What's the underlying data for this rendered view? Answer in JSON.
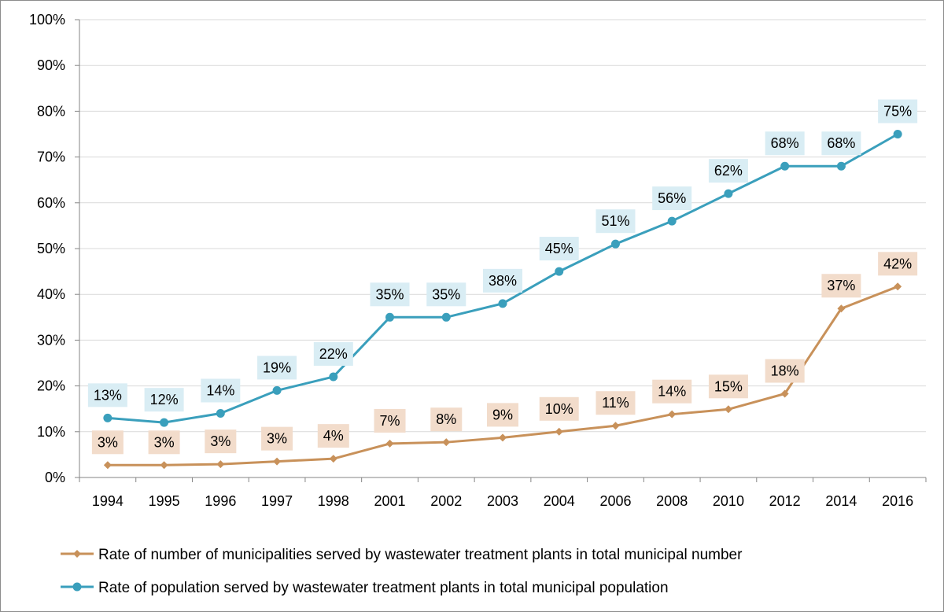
{
  "chart_data": {
    "type": "line",
    "categories": [
      "1994",
      "1995",
      "1996",
      "1997",
      "1998",
      "2001",
      "2002",
      "2003",
      "2004",
      "2006",
      "2008",
      "2010",
      "2012",
      "2014",
      "2016"
    ],
    "ylim": [
      0,
      100
    ],
    "yticks": [
      "0%",
      "10%",
      "20%",
      "30%",
      "40%",
      "50%",
      "60%",
      "70%",
      "80%",
      "90%",
      "100%"
    ],
    "grid": true,
    "legend_position": "bottom",
    "series": [
      {
        "name": "Rate of number of municipalities served by wastewater treatment plants in total municipal number",
        "color": "#c8915a",
        "label_bg": "#f2dccb",
        "marker": "diamond",
        "values": [
          2.7,
          2.7,
          2.9,
          3.5,
          4.1,
          7.4,
          7.7,
          8.7,
          10.0,
          11.3,
          13.8,
          14.9,
          18.3,
          36.9,
          41.7
        ],
        "labels": [
          "3%",
          "3%",
          "3%",
          "3%",
          "4%",
          "7%",
          "8%",
          "9%",
          "10%",
          "11%",
          "14%",
          "15%",
          "18%",
          "37%",
          "42%"
        ]
      },
      {
        "name": "Rate of population served by wastewater treatment plants in total municipal population",
        "color": "#3a9fbc",
        "label_bg": "#d9edf4",
        "marker": "circle",
        "values": [
          13,
          12,
          14,
          19,
          22,
          35,
          35,
          38,
          45,
          51,
          56,
          62,
          68,
          68,
          75
        ],
        "labels": [
          "13%",
          "12%",
          "14%",
          "19%",
          "22%",
          "35%",
          "35%",
          "38%",
          "45%",
          "51%",
          "56%",
          "62%",
          "68%",
          "68%",
          "75%"
        ]
      }
    ]
  }
}
